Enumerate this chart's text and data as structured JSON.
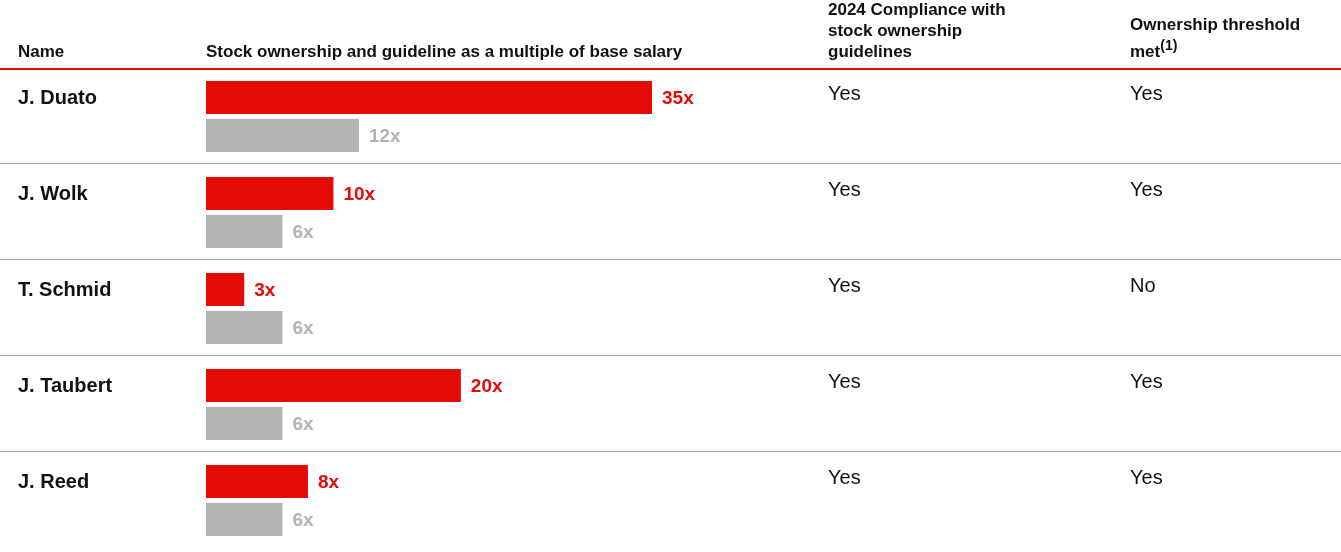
{
  "chart_data": {
    "type": "bar",
    "orientation": "horizontal",
    "ylabel": "Name",
    "xlabel": "Stock ownership and guideline as a multiple of base salary",
    "categories": [
      "J. Duato",
      "J. Wolk",
      "T. Schmid",
      "J. Taubert",
      "J. Reed"
    ],
    "series": [
      {
        "color": "#e60a05",
        "values": [
          35,
          10,
          3,
          20,
          8
        ],
        "value_labels": [
          "35x",
          "10x",
          "3x",
          "20x",
          "8x"
        ]
      },
      {
        "color": "#b3b3b3",
        "values": [
          12,
          6,
          6,
          6,
          6
        ],
        "value_labels": [
          "12x",
          "6x",
          "6x",
          "6x",
          "6x"
        ]
      }
    ],
    "annotations": [
      "2024 Compliance with stock ownership guidelines",
      "Ownership threshold met$^{(1)}$",
      "Yes",
      "Yes",
      "Yes",
      "Yes",
      "Yes",
      "No",
      "Yes",
      "Yes",
      "Yes",
      "Yes"
    ]
  }
}
